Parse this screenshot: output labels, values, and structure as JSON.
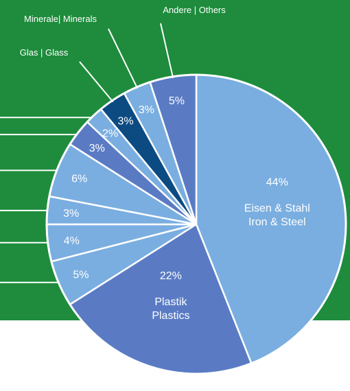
{
  "theme": {
    "panel_color": "#1e8c3c",
    "text_on_panel": "#ffffff",
    "slice_border": "#ffffff",
    "light_blue": "#7aaee0",
    "medium_blue": "#5a7bc4",
    "dark_blue": "#0c4a82"
  },
  "chart_data": {
    "type": "pie",
    "title": "",
    "start": "12 o'clock",
    "direction": "clockwise",
    "slices": [
      {
        "value": 44,
        "label": "44%",
        "name_de": "Eisen & Stahl",
        "name_en": "Iron & Steel",
        "color": "#7aaee0"
      },
      {
        "value": 22,
        "label": "22%",
        "name_de": "Plastik",
        "name_en": "Plastics",
        "color": "#5a7bc4"
      },
      {
        "value": 5,
        "label": "5%",
        "name_de": "",
        "name_en": "",
        "color": "#7aaee0"
      },
      {
        "value": 4,
        "label": "4%",
        "name_de": "",
        "name_en": "",
        "color": "#7aaee0"
      },
      {
        "value": 3,
        "label": "3%",
        "name_de": "",
        "name_en": "",
        "color": "#7aaee0"
      },
      {
        "value": 6,
        "label": "6%",
        "name_de": "",
        "name_en": "",
        "color": "#7aaee0"
      },
      {
        "value": 3,
        "label": "3%",
        "name_de": "",
        "name_en": "",
        "color": "#5a7bc4"
      },
      {
        "value": 2,
        "label": "2%",
        "name_de": "",
        "name_en": "",
        "color": "#7aaee0"
      },
      {
        "value": 3,
        "label": "3%",
        "name_de": "Glas",
        "name_en": "Glass",
        "color": "#0c4a82"
      },
      {
        "value": 3,
        "label": "3%",
        "name_de": "Minerale",
        "name_en": "Minerals",
        "color": "#7aaee0"
      },
      {
        "value": 5,
        "label": "5%",
        "name_de": "Andere",
        "name_en": "Others",
        "color": "#5a7bc4"
      }
    ],
    "callouts": [
      {
        "text": "Andere | Others",
        "slice_index": 10
      },
      {
        "text": "Minerale| Minerals",
        "slice_index": 9
      },
      {
        "text": "Glas | Glass",
        "slice_index": 8
      }
    ]
  }
}
